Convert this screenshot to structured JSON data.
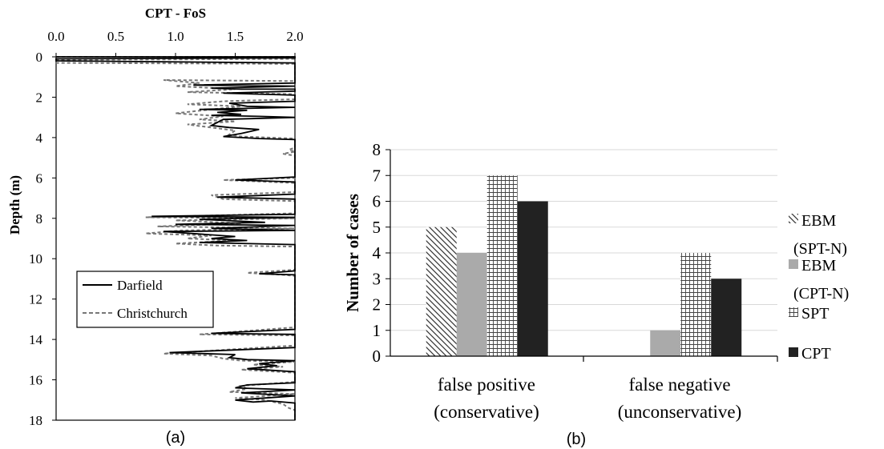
{
  "chart_data": [
    {
      "panel_label": "(a)",
      "type": "line",
      "title": "CPT - FoS",
      "xlabel": "",
      "ylabel": "Depth (m)",
      "x_axis_position": "top",
      "y_axis_inverted": true,
      "xlim": [
        0.0,
        2.0
      ],
      "ylim": [
        0,
        18
      ],
      "xticks": [
        "0.0",
        "0.5",
        "1.0",
        "1.5",
        "2.0"
      ],
      "yticks": [
        "0",
        "2",
        "4",
        "6",
        "8",
        "10",
        "12",
        "14",
        "16",
        "18"
      ],
      "grid": false,
      "legend_position": "lower-left",
      "series": [
        {
          "name": "Darfield",
          "style": "solid",
          "color": "#000000",
          "points": [
            [
              0.0,
              0.0
            ],
            [
              2.0,
              0.0
            ],
            [
              2.0,
              0.05
            ],
            [
              0.0,
              0.1
            ],
            [
              0.0,
              0.2
            ],
            [
              2.0,
              0.3
            ],
            [
              2.0,
              1.3
            ],
            [
              1.15,
              1.4
            ],
            [
              2.0,
              1.45
            ],
            [
              1.3,
              1.55
            ],
            [
              1.55,
              1.6
            ],
            [
              2.0,
              1.6
            ],
            [
              2.0,
              1.7
            ],
            [
              1.4,
              1.8
            ],
            [
              2.0,
              1.9
            ],
            [
              2.0,
              2.2
            ],
            [
              1.45,
              2.3
            ],
            [
              1.6,
              2.45
            ],
            [
              2.0,
              2.5
            ],
            [
              1.2,
              2.6
            ],
            [
              1.6,
              2.65
            ],
            [
              1.35,
              2.75
            ],
            [
              1.45,
              2.8
            ],
            [
              1.55,
              2.85
            ],
            [
              1.3,
              2.9
            ],
            [
              1.7,
              2.95
            ],
            [
              2.0,
              3.0
            ],
            [
              1.4,
              3.1
            ],
            [
              1.3,
              3.4
            ],
            [
              1.45,
              3.5
            ],
            [
              1.7,
              3.6
            ],
            [
              1.55,
              3.8
            ],
            [
              1.4,
              3.95
            ],
            [
              1.7,
              4.05
            ],
            [
              2.0,
              4.1
            ],
            [
              2.0,
              5.95
            ],
            [
              1.5,
              6.1
            ],
            [
              2.0,
              6.2
            ],
            [
              2.0,
              6.8
            ],
            [
              1.35,
              6.95
            ],
            [
              2.0,
              7.05
            ],
            [
              2.0,
              7.8
            ],
            [
              0.8,
              7.9
            ],
            [
              2.0,
              7.95
            ],
            [
              1.2,
              8.05
            ],
            [
              1.75,
              8.2
            ],
            [
              1.0,
              8.3
            ],
            [
              2.0,
              8.35
            ],
            [
              1.3,
              8.5
            ],
            [
              2.0,
              8.6
            ],
            [
              0.9,
              8.65
            ],
            [
              1.5,
              8.9
            ],
            [
              1.3,
              9.0
            ],
            [
              1.6,
              9.1
            ],
            [
              1.2,
              9.2
            ],
            [
              2.0,
              9.3
            ],
            [
              2.0,
              10.6
            ],
            [
              1.7,
              10.75
            ],
            [
              2.0,
              10.8
            ],
            [
              2.0,
              13.5
            ],
            [
              1.3,
              13.7
            ],
            [
              2.0,
              13.75
            ],
            [
              2.0,
              14.4
            ],
            [
              0.95,
              14.65
            ],
            [
              1.5,
              14.75
            ],
            [
              1.45,
              14.9
            ],
            [
              1.6,
              15.0
            ],
            [
              2.0,
              15.05
            ],
            [
              1.7,
              15.2
            ],
            [
              1.85,
              15.3
            ],
            [
              1.6,
              15.45
            ],
            [
              2.0,
              15.6
            ],
            [
              2.0,
              16.15
            ],
            [
              1.6,
              16.25
            ],
            [
              1.5,
              16.4
            ],
            [
              2.0,
              16.5
            ],
            [
              1.55,
              16.65
            ],
            [
              2.0,
              16.8
            ],
            [
              1.5,
              17.0
            ],
            [
              1.65,
              17.1
            ],
            [
              1.8,
              17.05
            ],
            [
              2.0,
              17.15
            ],
            [
              2.0,
              18.0
            ]
          ]
        },
        {
          "name": "Christchurch",
          "style": "dashed",
          "color": "#777777",
          "points": [
            [
              0.0,
              0.0
            ],
            [
              2.0,
              0.0
            ],
            [
              2.0,
              0.1
            ],
            [
              0.0,
              0.15
            ],
            [
              0.0,
              0.3
            ],
            [
              2.0,
              0.35
            ],
            [
              2.0,
              1.2
            ],
            [
              0.9,
              1.15
            ],
            [
              1.2,
              1.3
            ],
            [
              1.0,
              1.45
            ],
            [
              1.5,
              1.6
            ],
            [
              1.1,
              1.75
            ],
            [
              2.0,
              1.85
            ],
            [
              2.0,
              2.1
            ],
            [
              1.4,
              2.2
            ],
            [
              1.1,
              2.35
            ],
            [
              1.55,
              2.45
            ],
            [
              1.15,
              2.7
            ],
            [
              1.0,
              2.8
            ],
            [
              1.4,
              2.95
            ],
            [
              1.2,
              3.1
            ],
            [
              1.5,
              3.2
            ],
            [
              1.1,
              3.35
            ],
            [
              1.3,
              3.5
            ],
            [
              1.5,
              3.65
            ],
            [
              1.45,
              3.85
            ],
            [
              1.55,
              3.95
            ],
            [
              2.0,
              4.05
            ],
            [
              2.0,
              4.5
            ],
            [
              1.95,
              4.6
            ],
            [
              2.0,
              4.7
            ],
            [
              1.9,
              4.8
            ],
            [
              2.0,
              4.9
            ],
            [
              2.0,
              6.0
            ],
            [
              1.4,
              6.1
            ],
            [
              2.0,
              6.25
            ],
            [
              2.0,
              6.7
            ],
            [
              1.3,
              6.85
            ],
            [
              1.4,
              7.05
            ],
            [
              2.0,
              7.15
            ],
            [
              2.0,
              7.75
            ],
            [
              0.75,
              7.95
            ],
            [
              2.0,
              8.0
            ],
            [
              1.0,
              8.1
            ],
            [
              1.55,
              8.25
            ],
            [
              0.85,
              8.4
            ],
            [
              2.0,
              8.5
            ],
            [
              1.05,
              8.6
            ],
            [
              0.75,
              8.75
            ],
            [
              1.3,
              8.85
            ],
            [
              1.1,
              9.0
            ],
            [
              1.5,
              9.1
            ],
            [
              1.0,
              9.25
            ],
            [
              1.35,
              9.35
            ],
            [
              2.0,
              9.4
            ],
            [
              2.0,
              10.55
            ],
            [
              1.6,
              10.7
            ],
            [
              1.9,
              10.8
            ],
            [
              2.0,
              10.85
            ],
            [
              2.0,
              13.4
            ],
            [
              1.2,
              13.75
            ],
            [
              2.0,
              13.8
            ],
            [
              2.0,
              14.3
            ],
            [
              0.9,
              14.7
            ],
            [
              1.3,
              14.8
            ],
            [
              1.4,
              14.95
            ],
            [
              1.55,
              15.05
            ],
            [
              2.0,
              15.1
            ],
            [
              1.65,
              15.25
            ],
            [
              1.9,
              15.35
            ],
            [
              1.55,
              15.5
            ],
            [
              2.0,
              15.65
            ],
            [
              2.0,
              16.1
            ],
            [
              1.55,
              16.3
            ],
            [
              1.6,
              16.45
            ],
            [
              1.45,
              16.6
            ],
            [
              2.0,
              16.7
            ],
            [
              1.5,
              16.9
            ],
            [
              1.75,
              17.0
            ],
            [
              1.9,
              17.2
            ],
            [
              1.95,
              17.4
            ],
            [
              2.0,
              17.5
            ],
            [
              2.0,
              18.0
            ]
          ]
        }
      ]
    },
    {
      "panel_label": "(b)",
      "type": "bar",
      "title": "",
      "xlabel": "",
      "ylabel": "Number of cases",
      "ylim": [
        0,
        8
      ],
      "yticks": [
        "0",
        "1",
        "2",
        "3",
        "4",
        "5",
        "6",
        "7",
        "8"
      ],
      "grid": true,
      "legend_position": "right",
      "categories": [
        {
          "line1": "false positive",
          "line2": "(conservative)"
        },
        {
          "line1": "false negative",
          "line2": "(unconservative)"
        }
      ],
      "series": [
        {
          "name_line1": "EBM",
          "name_line2": "(SPT-N)",
          "pattern": "diagonal-hatch",
          "values": [
            5,
            0
          ]
        },
        {
          "name_line1": "EBM",
          "name_line2": "(CPT-N)",
          "pattern": "light-gray",
          "values": [
            4,
            1
          ]
        },
        {
          "name_line1": "SPT",
          "name_line2": "",
          "pattern": "grid-hatch",
          "values": [
            7,
            4
          ]
        },
        {
          "name_line1": "CPT",
          "name_line2": "",
          "pattern": "solid-dark",
          "values": [
            6,
            3
          ]
        }
      ]
    }
  ]
}
